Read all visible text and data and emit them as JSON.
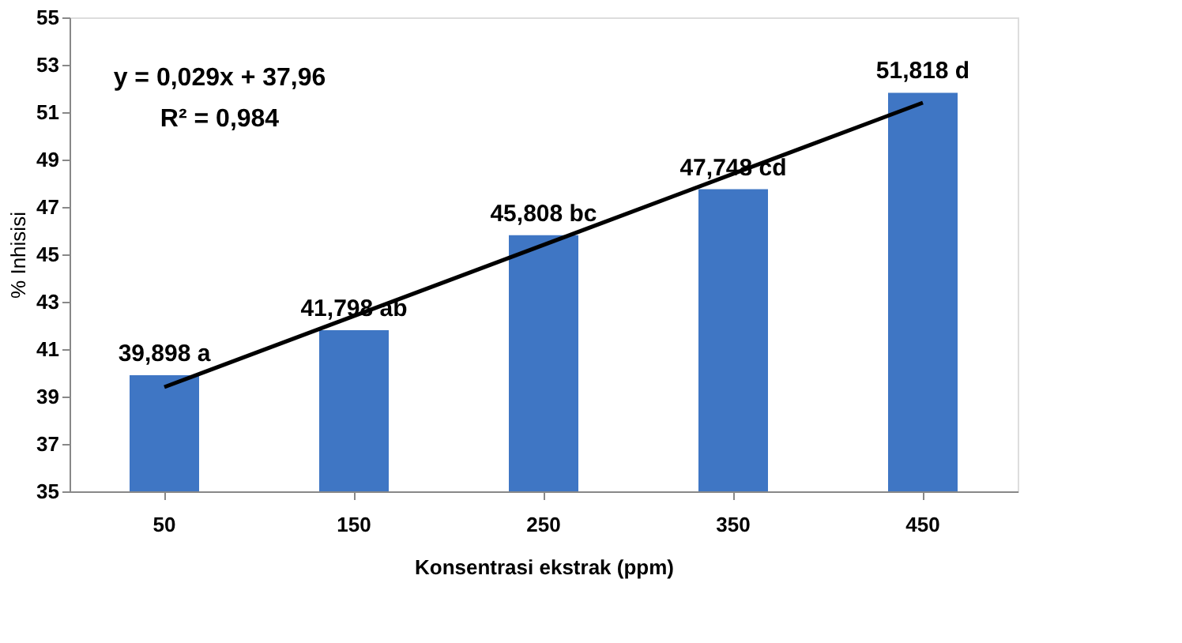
{
  "chart_data": {
    "type": "bar",
    "xlabel": "Konsentrasi ekstrak (ppm)",
    "ylabel": "% Inhisisi",
    "categories": [
      "50",
      "150",
      "250",
      "350",
      "450"
    ],
    "series": [
      {
        "color": "#3f76c4",
        "values": [
          39.898,
          41.798,
          45.808,
          47.748,
          51.818
        ],
        "value_labels": [
          "39,898 a",
          "41,798 ab",
          "45,808 bc",
          "47,748 cd",
          "51,818 d"
        ]
      },
      {
        "type": "line",
        "color": "#000000",
        "x": [
          "50",
          "450"
        ],
        "values": [
          39.4,
          51.4
        ]
      }
    ],
    "ylim": [
      35,
      55
    ],
    "yticks": [
      35,
      37,
      39,
      41,
      43,
      45,
      47,
      49,
      51,
      53,
      55
    ],
    "grid": false,
    "annotations": [
      "y = 0,029x + 37,96",
      "R² = 0,984"
    ]
  }
}
